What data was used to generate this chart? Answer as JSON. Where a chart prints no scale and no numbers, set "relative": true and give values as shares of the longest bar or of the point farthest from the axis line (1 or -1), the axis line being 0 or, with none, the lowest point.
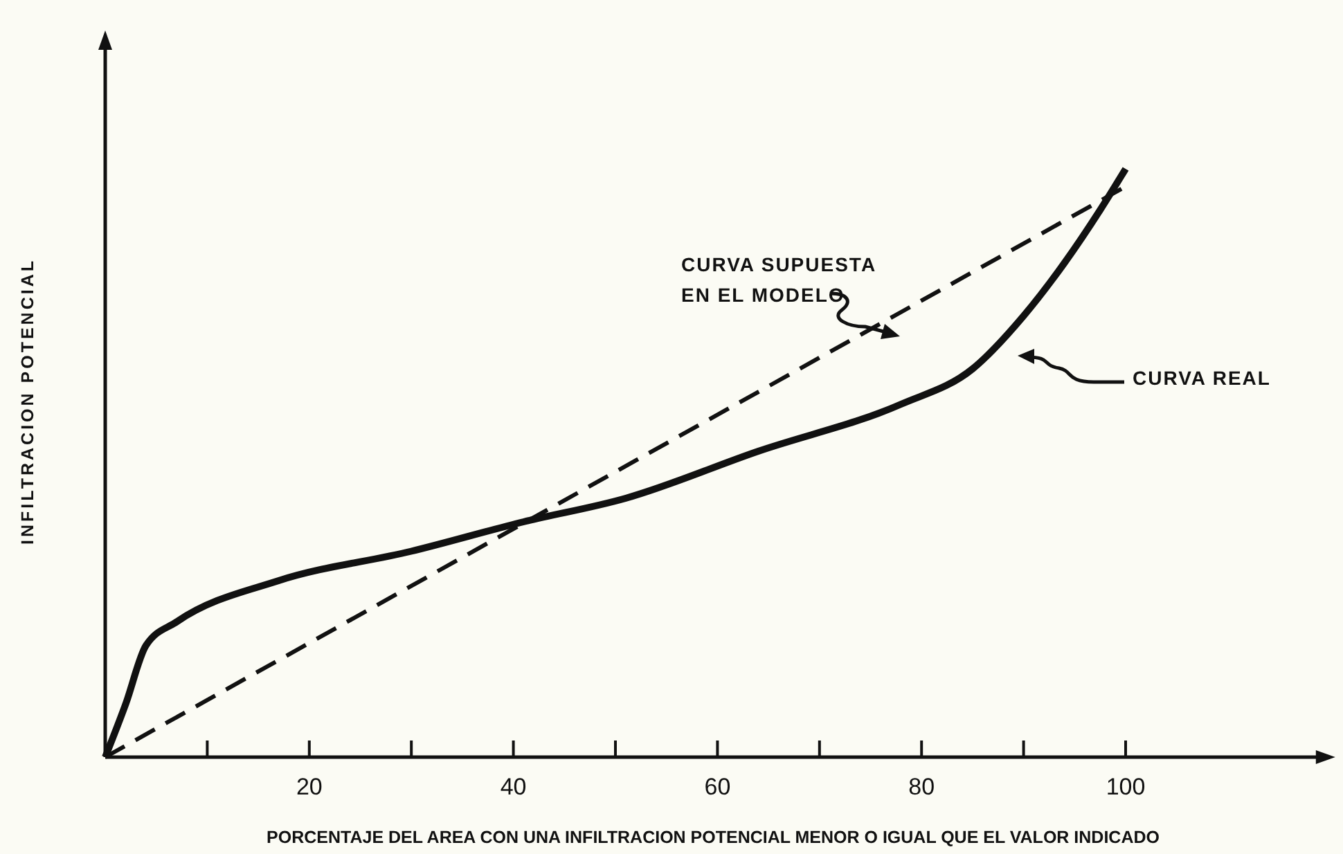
{
  "chart_data": {
    "type": "line",
    "relative": true,
    "xlabel": "PORCENTAJE DEL AREA CON UNA INFILTRACION POTENCIAL MENOR O IGUAL QUE EL VALOR INDICADO",
    "ylabel": "INFILTRACION POTENCIAL",
    "xlim": [
      0,
      120
    ],
    "xticks": [
      {
        "value": 10,
        "label": null
      },
      20,
      {
        "value": 30,
        "label": null
      },
      40,
      {
        "value": 50,
        "label": null
      },
      60,
      {
        "value": 70,
        "label": null
      },
      80,
      {
        "value": 90,
        "label": null
      },
      100
    ],
    "series": [
      {
        "name": "CURVA SUPUESTA EN EL MODELO",
        "color": "#111111",
        "line_style": "dashed",
        "x": [
          0,
          100
        ],
        "values": [
          0,
          0.97
        ]
      },
      {
        "name": "CURVA REAL",
        "color": "#111111",
        "line_style": "solid",
        "x": [
          0,
          2,
          4,
          7,
          17,
          30,
          41,
          51,
          64,
          78,
          85,
          90,
          94,
          97.5,
          100
        ],
        "values": [
          0,
          0.09,
          0.19,
          0.23,
          0.3,
          0.35,
          0.4,
          0.44,
          0.52,
          0.6,
          0.66,
          0.75,
          0.84,
          0.93,
          1
        ]
      }
    ]
  }
}
